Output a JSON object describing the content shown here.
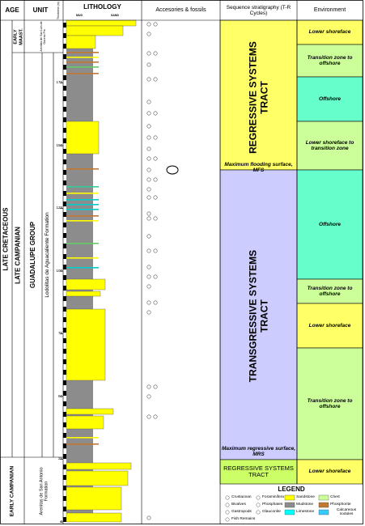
{
  "header": {
    "age": "AGE",
    "unit": "UNIT",
    "lithology": "LITHOLOGY",
    "thickness": "Thickness (m)",
    "mud": "MUD",
    "sand": "SAND",
    "accessories": "Accesories & fossils",
    "sequence": "Sequence stratigraphy (T-R Cycles)",
    "environment": "Environment"
  },
  "age": [
    "LATE CRETACEOUS",
    "EARLY MAAST.",
    "LATE CAMPANIAN",
    "EARLY CAMPANIAN"
  ],
  "units": [
    "Arenitas de San Luis de Gaceno Fm.",
    "GUADALUPE GROUP",
    "Lodolitas de Aguacaliente Formation",
    "Arenitas de San Antonio Formation"
  ],
  "thickness_ticks": [
    0,
    25,
    50,
    75,
    100,
    125,
    150,
    175
  ],
  "sequence": {
    "upper_tract": "REGRESSIVE SYSTEMS TRACT",
    "mfs": "Maximum flooding surface, MFS",
    "middle_tract": "TRANSGRESSIVE SYSTEMS TRACT",
    "mrs": "Maximum regressive surface, MRS",
    "lower_tract": "REGRESSIVE SYSTEMS TRACT"
  },
  "environment": [
    "Lower shoreface",
    "Transition zone to offshore",
    "Offshore",
    "Lower shoreface to transition zone",
    "Offshore",
    "Transition zone to offshore",
    "Lower shoreface",
    "Transition zone to offshore",
    "Lower shoreface"
  ],
  "legend": {
    "title": "LEGEND",
    "items": [
      "Crustacean",
      "Bivalves",
      "Gastropods",
      "Fish Remains",
      "Foraminifera",
      "Phosphates",
      "Glauconite",
      "Sandstone",
      "Mudstone",
      "Limestone",
      "Chert",
      "Phosphorite",
      "Calcareous nodules"
    ]
  }
}
